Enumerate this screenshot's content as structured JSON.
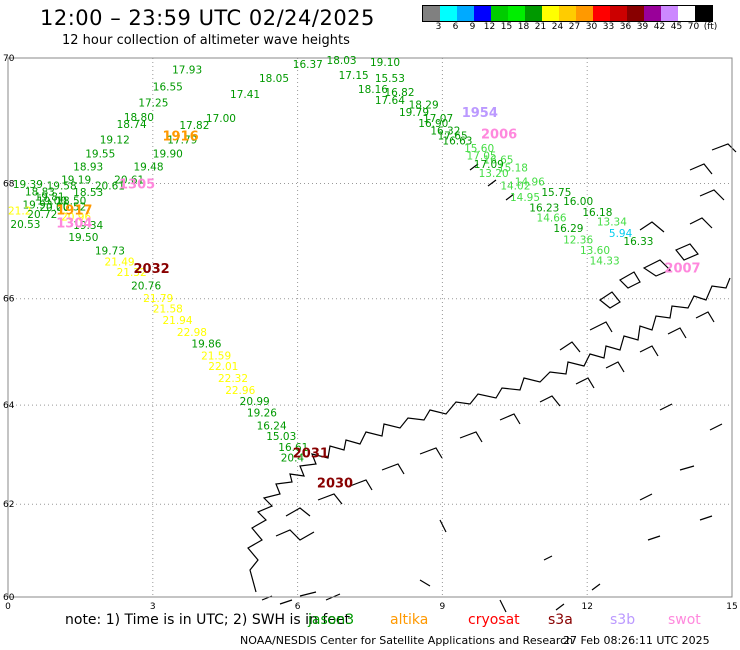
{
  "header": {
    "title": "12:00 – 23:59 UTC 02/24/2025",
    "subtitle": "12 hour collection of altimeter wave heights"
  },
  "legend": {
    "colors": [
      "#808080",
      "#00ffff",
      "#00aaff",
      "#0000ff",
      "#00cc00",
      "#00ee00",
      "#009900",
      "#ffff00",
      "#ffcc00",
      "#ff9900",
      "#ff0000",
      "#cc0000",
      "#880000",
      "#990099",
      "#cc88ff",
      "#ffffff",
      "#000000"
    ],
    "labels": [
      "3",
      "6",
      "9",
      "12",
      "15",
      "18",
      "21",
      "24",
      "27",
      "30",
      "33",
      "36",
      "39",
      "42",
      "45",
      "70",
      "(ft)"
    ]
  },
  "axes": {
    "x_ticks": [
      "0",
      "3",
      "6",
      "9",
      "12",
      "15"
    ],
    "y_ticks": [
      "70",
      "68",
      "66",
      "64",
      "62",
      "60"
    ]
  },
  "colors": {
    "green": "#009900",
    "lightgreen": "#44dd44",
    "yellow": "#ffff00",
    "orange": "#ff9900",
    "darkred": "#880000",
    "violet": "#bb99ff",
    "pink": "#ff88dd",
    "cyan": "#00ccee"
  },
  "passes": [
    {
      "label": "1916",
      "lon": 3.2,
      "lat": 68.71,
      "color": "orange"
    },
    {
      "label": "1305",
      "lon": 2.3,
      "lat": 67.92,
      "color": "pink"
    },
    {
      "label": "1917",
      "lon": 1.0,
      "lat": 67.48,
      "color": "orange"
    },
    {
      "label": "1304",
      "lon": 1.0,
      "lat": 67.26,
      "color": "pink"
    },
    {
      "label": "2032",
      "lon": 2.6,
      "lat": 66.46,
      "color": "darkred"
    },
    {
      "label": "2031",
      "lon": 5.9,
      "lat": 62.96,
      "color": "darkred"
    },
    {
      "label": "2030",
      "lon": 6.4,
      "lat": 62.35,
      "color": "darkred"
    },
    {
      "label": "1954",
      "lon": 9.4,
      "lat": 69.08,
      "color": "violet"
    },
    {
      "label": "2006",
      "lon": 9.8,
      "lat": 68.74,
      "color": "pink"
    },
    {
      "label": "2007",
      "lon": 13.6,
      "lat": 66.47,
      "color": "pink"
    }
  ],
  "observations": [
    {
      "v": "17.93",
      "lon": 3.4,
      "lat": 69.76,
      "c": "green"
    },
    {
      "v": "16.55",
      "lon": 3.0,
      "lat": 69.5,
      "c": "green"
    },
    {
      "v": "17.25",
      "lon": 2.7,
      "lat": 69.25,
      "c": "green"
    },
    {
      "v": "18.80",
      "lon": 2.4,
      "lat": 69.02,
      "c": "green"
    },
    {
      "v": "18.74",
      "lon": 2.25,
      "lat": 68.91,
      "c": "green"
    },
    {
      "v": "19.12",
      "lon": 1.9,
      "lat": 68.66,
      "c": "green"
    },
    {
      "v": "19.55",
      "lon": 1.6,
      "lat": 68.43,
      "c": "green"
    },
    {
      "v": "18.93",
      "lon": 1.35,
      "lat": 68.22,
      "c": "green"
    },
    {
      "v": "19.19",
      "lon": 1.1,
      "lat": 68.0,
      "c": "green"
    },
    {
      "v": "19.39",
      "lon": 0.1,
      "lat": 67.93,
      "c": "green"
    },
    {
      "v": "19.58",
      "lon": 0.8,
      "lat": 67.9,
      "c": "green"
    },
    {
      "v": "18.53",
      "lon": 1.35,
      "lat": 67.79,
      "c": "green"
    },
    {
      "v": "18.83",
      "lon": 0.35,
      "lat": 67.8,
      "c": "green"
    },
    {
      "v": "19.81",
      "lon": 0.55,
      "lat": 67.72,
      "c": "green"
    },
    {
      "v": "18.50",
      "lon": 1.0,
      "lat": 67.65,
      "c": "green"
    },
    {
      "v": "19.00",
      "lon": 0.6,
      "lat": 67.65,
      "c": "green"
    },
    {
      "v": "19.93",
      "lon": 0.3,
      "lat": 67.58,
      "c": "green"
    },
    {
      "v": "20.00",
      "lon": 0.65,
      "lat": 67.54,
      "c": "green"
    },
    {
      "v": "20.52",
      "lon": 1.0,
      "lat": 67.55,
      "c": "green"
    },
    {
      "v": "21.2",
      "lon": 0.0,
      "lat": 67.48,
      "c": "yellow"
    },
    {
      "v": "20.72",
      "lon": 0.4,
      "lat": 67.42,
      "c": "green"
    },
    {
      "v": "20.96",
      "lon": 1.1,
      "lat": 67.38,
      "c": "yellow"
    },
    {
      "v": "20.53",
      "lon": 0.05,
      "lat": 67.25,
      "c": "green"
    },
    {
      "v": "19.34",
      "lon": 1.35,
      "lat": 67.23,
      "c": "green"
    },
    {
      "v": "19.50",
      "lon": 1.25,
      "lat": 67.02,
      "c": "green"
    },
    {
      "v": "19.73",
      "lon": 1.8,
      "lat": 66.79,
      "c": "green"
    },
    {
      "v": "21.49",
      "lon": 2.0,
      "lat": 66.59,
      "c": "yellow"
    },
    {
      "v": "21.32",
      "lon": 2.25,
      "lat": 66.41,
      "c": "yellow"
    },
    {
      "v": "20.76",
      "lon": 2.55,
      "lat": 66.17,
      "c": "green"
    },
    {
      "v": "21.79",
      "lon": 2.8,
      "lat": 65.94,
      "c": "yellow"
    },
    {
      "v": "21.58",
      "lon": 3.0,
      "lat": 65.75,
      "c": "yellow"
    },
    {
      "v": "21.94",
      "lon": 3.2,
      "lat": 65.54,
      "c": "yellow"
    },
    {
      "v": "22.98",
      "lon": 3.5,
      "lat": 65.32,
      "c": "yellow"
    },
    {
      "v": "19.86",
      "lon": 3.8,
      "lat": 65.1,
      "c": "green"
    },
    {
      "v": "21.59",
      "lon": 4.0,
      "lat": 64.88,
      "c": "yellow"
    },
    {
      "v": "22.01",
      "lon": 4.15,
      "lat": 64.68,
      "c": "yellow"
    },
    {
      "v": "22.32",
      "lon": 4.35,
      "lat": 64.45,
      "c": "yellow"
    },
    {
      "v": "22.96",
      "lon": 4.5,
      "lat": 64.22,
      "c": "yellow"
    },
    {
      "v": "20.99",
      "lon": 4.8,
      "lat": 64.0,
      "c": "green"
    },
    {
      "v": "19.26",
      "lon": 4.95,
      "lat": 63.78,
      "c": "green"
    },
    {
      "v": "16.24",
      "lon": 5.15,
      "lat": 63.52,
      "c": "green"
    },
    {
      "v": "15.03",
      "lon": 5.35,
      "lat": 63.31,
      "c": "green"
    },
    {
      "v": "16.61",
      "lon": 5.6,
      "lat": 63.09,
      "c": "green"
    },
    {
      "v": "20.4",
      "lon": 5.65,
      "lat": 62.88,
      "c": "green"
    },
    {
      "v": "17.82",
      "lon": 3.55,
      "lat": 68.89,
      "c": "green"
    },
    {
      "v": "17.79",
      "lon": 3.3,
      "lat": 68.66,
      "c": "green"
    },
    {
      "v": "19.90",
      "lon": 3.0,
      "lat": 68.43,
      "c": "green"
    },
    {
      "v": "19.48",
      "lon": 2.6,
      "lat": 68.22,
      "c": "green"
    },
    {
      "v": "20.61",
      "lon": 2.2,
      "lat": 68.0,
      "c": "green"
    },
    {
      "v": "20.61",
      "lon": 1.8,
      "lat": 67.9,
      "c": "green"
    },
    {
      "v": "17.00",
      "lon": 4.1,
      "lat": 69.0,
      "c": "green"
    },
    {
      "v": "17.41",
      "lon": 4.6,
      "lat": 69.38,
      "c": "green"
    },
    {
      "v": "18.05",
      "lon": 5.2,
      "lat": 69.63,
      "c": "green"
    },
    {
      "v": "16.37",
      "lon": 5.9,
      "lat": 69.85,
      "c": "green"
    },
    {
      "v": "18.03",
      "lon": 6.6,
      "lat": 69.91,
      "c": "green"
    },
    {
      "v": "19.10",
      "lon": 7.5,
      "lat": 69.88,
      "c": "green"
    },
    {
      "v": "17.15",
      "lon": 6.85,
      "lat": 69.68,
      "c": "green"
    },
    {
      "v": "15.53",
      "lon": 7.6,
      "lat": 69.63,
      "c": "green"
    },
    {
      "v": "18.16",
      "lon": 7.25,
      "lat": 69.46,
      "c": "green"
    },
    {
      "v": "16.82",
      "lon": 7.8,
      "lat": 69.41,
      "c": "green"
    },
    {
      "v": "17.64",
      "lon": 7.6,
      "lat": 69.29,
      "c": "green"
    },
    {
      "v": "18.29",
      "lon": 8.3,
      "lat": 69.22,
      "c": "green"
    },
    {
      "v": "19.79",
      "lon": 8.1,
      "lat": 69.1,
      "c": "green"
    },
    {
      "v": "17.07",
      "lon": 8.6,
      "lat": 69.0,
      "c": "green"
    },
    {
      "v": "16.90",
      "lon": 8.5,
      "lat": 68.92,
      "c": "green"
    },
    {
      "v": "16.32",
      "lon": 8.75,
      "lat": 68.8,
      "c": "green"
    },
    {
      "v": "17.65",
      "lon": 8.9,
      "lat": 68.72,
      "c": "green"
    },
    {
      "v": "16.63",
      "lon": 9.0,
      "lat": 68.64,
      "c": "green"
    },
    {
      "v": "15.60",
      "lon": 9.45,
      "lat": 68.52,
      "c": "lightgreen"
    },
    {
      "v": "17.05",
      "lon": 9.5,
      "lat": 68.4,
      "c": "lightgreen"
    },
    {
      "v": "16.65",
      "lon": 9.85,
      "lat": 68.33,
      "c": "lightgreen"
    },
    {
      "v": "17.09",
      "lon": 9.65,
      "lat": 68.26,
      "c": "green"
    },
    {
      "v": "15.18",
      "lon": 10.15,
      "lat": 68.2,
      "c": "lightgreen"
    },
    {
      "v": "13.20",
      "lon": 9.75,
      "lat": 68.11,
      "c": "lightgreen"
    },
    {
      "v": "14.96",
      "lon": 10.5,
      "lat": 67.97,
      "c": "lightgreen"
    },
    {
      "v": "14.02",
      "lon": 10.2,
      "lat": 67.9,
      "c": "lightgreen"
    },
    {
      "v": "15.75",
      "lon": 11.05,
      "lat": 67.79,
      "c": "green"
    },
    {
      "v": "14.95",
      "lon": 10.4,
      "lat": 67.71,
      "c": "lightgreen"
    },
    {
      "v": "16.00",
      "lon": 11.5,
      "lat": 67.64,
      "c": "green"
    },
    {
      "v": "16.23",
      "lon": 10.8,
      "lat": 67.53,
      "c": "green"
    },
    {
      "v": "16.18",
      "lon": 11.9,
      "lat": 67.45,
      "c": "green"
    },
    {
      "v": "14.66",
      "lon": 10.95,
      "lat": 67.36,
      "c": "lightgreen"
    },
    {
      "v": "13.34",
      "lon": 12.2,
      "lat": 67.29,
      "c": "lightgreen"
    },
    {
      "v": "16.29",
      "lon": 11.3,
      "lat": 67.18,
      "c": "green"
    },
    {
      "v": "5.94",
      "lon": 12.45,
      "lat": 67.09,
      "c": "cyan"
    },
    {
      "v": "12.36",
      "lon": 11.5,
      "lat": 66.98,
      "c": "lightgreen"
    },
    {
      "v": "16.33",
      "lon": 12.75,
      "lat": 66.95,
      "c": "green"
    },
    {
      "v": "13.60",
      "lon": 11.85,
      "lat": 66.8,
      "c": "lightgreen"
    },
    {
      "v": "14.33",
      "lon": 12.05,
      "lat": 66.61,
      "c": "lightgreen"
    }
  ],
  "footer": {
    "note": "note:  1) Time is in UTC; 2) SWH is in feet",
    "satellites": [
      {
        "name": "jason3",
        "color": "green"
      },
      {
        "name": "altika",
        "color": "orange"
      },
      {
        "name": "cryosat",
        "color": "red"
      },
      {
        "name": "s3a",
        "color": "darkred"
      },
      {
        "name": "s3b",
        "color": "violet"
      },
      {
        "name": "swot",
        "color": "pink"
      }
    ],
    "credit": "NOAA/NESDIS Center for Satellite Applications and Research",
    "date": "27 Feb 08:26:11 UTC 2025"
  }
}
